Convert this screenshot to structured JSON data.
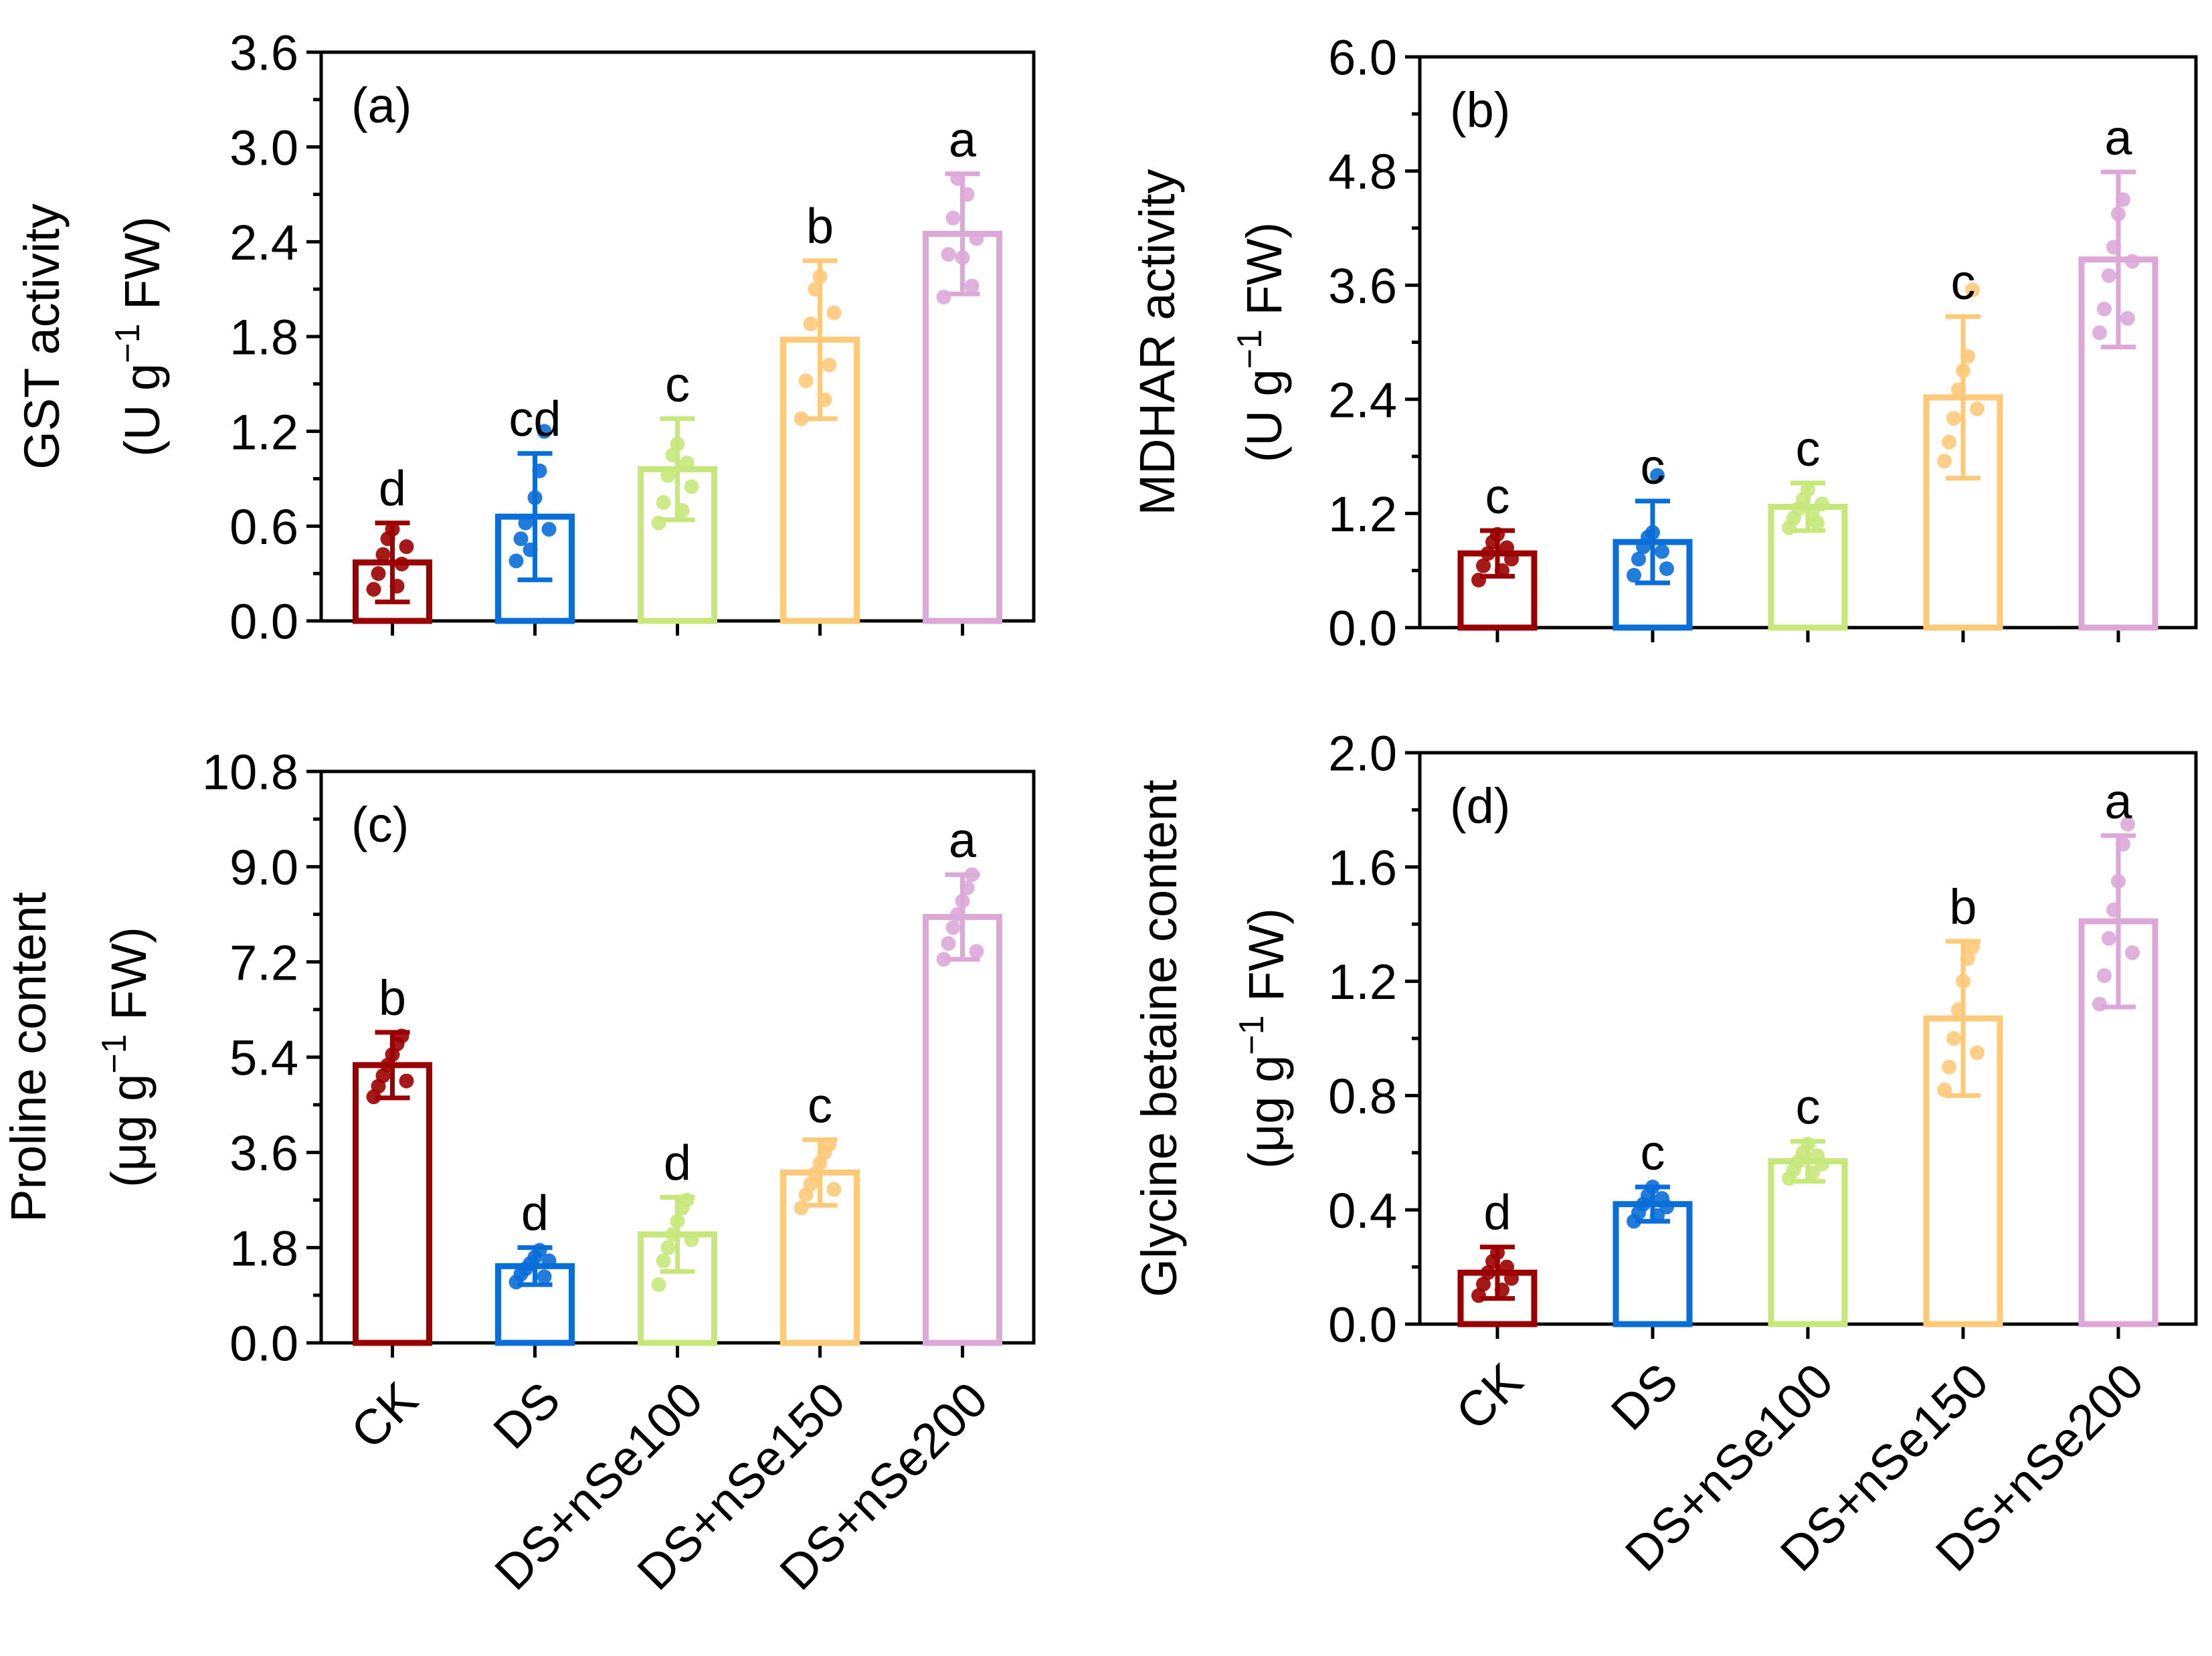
{
  "categories": [
    "CK",
    "DS",
    "DS+nSe100",
    "DS+nSe150",
    "DS+nSe200"
  ],
  "colors": [
    "#9B0000",
    "#0A6ED8",
    "#C6E87A",
    "#FFC97A",
    "#DDA8D8"
  ],
  "chart_data": [
    {
      "type": "bar",
      "panel_label": "(a)",
      "ylabel_line1": "GST activity",
      "ylabel_line2": {
        "prefix": "(U g",
        "sup": "−1",
        "suffix": " FW)"
      },
      "ylim": [
        0.0,
        3.6
      ],
      "yticks": [
        "0.0",
        "0.6",
        "1.2",
        "1.8",
        "2.4",
        "3.0",
        "3.6"
      ],
      "values": [
        0.37,
        0.66,
        0.96,
        1.78,
        2.45
      ],
      "errors": [
        0.25,
        0.4,
        0.32,
        0.5,
        0.38
      ],
      "letters": [
        "d",
        "cd",
        "c",
        "b",
        "a"
      ],
      "points": [
        [
          0.2,
          0.3,
          0.42,
          0.52,
          0.58,
          0.22,
          0.36,
          0.47
        ],
        [
          0.38,
          0.52,
          0.62,
          0.45,
          0.78,
          0.95,
          1.2,
          0.58
        ],
        [
          0.62,
          0.75,
          0.92,
          1.05,
          1.12,
          0.7,
          1.0,
          0.85
        ],
        [
          1.28,
          1.52,
          1.88,
          2.1,
          2.18,
          1.4,
          1.62,
          1.95
        ],
        [
          2.05,
          2.32,
          2.55,
          2.8,
          2.3,
          2.7,
          2.12,
          2.42
        ]
      ],
      "show_xlabels": false
    },
    {
      "type": "bar",
      "panel_label": "(b)",
      "ylabel_line1": "MDHAR activity",
      "ylabel_line2": {
        "prefix": "(U g",
        "sup": "−1",
        "suffix": " FW)"
      },
      "ylim": [
        0.0,
        6.0
      ],
      "yticks": [
        "0.0",
        "1.2",
        "2.4",
        "3.6",
        "4.8",
        "6.0"
      ],
      "values": [
        0.78,
        0.9,
        1.27,
        2.42,
        3.87
      ],
      "errors": [
        0.24,
        0.43,
        0.25,
        0.85,
        0.92
      ],
      "letters": [
        "c",
        "c",
        "c",
        "c",
        "a"
      ],
      "points": [
        [
          0.5,
          0.65,
          0.78,
          0.9,
          0.98,
          0.6,
          0.84,
          0.72
        ],
        [
          0.55,
          0.72,
          0.85,
          0.95,
          1.0,
          1.6,
          0.8,
          0.62
        ],
        [
          1.05,
          1.15,
          1.25,
          1.35,
          1.45,
          1.2,
          1.1,
          1.3
        ],
        [
          1.75,
          1.95,
          2.2,
          2.5,
          2.7,
          2.85,
          3.55,
          2.3
        ],
        [
          3.1,
          3.35,
          3.7,
          4.0,
          4.35,
          4.5,
          3.25,
          3.85
        ]
      ],
      "show_xlabels": false
    },
    {
      "type": "bar",
      "panel_label": "(c)",
      "ylabel_line1": "Proline content",
      "ylabel_line2": {
        "prefix": "(μg g",
        "sup": "−1",
        "suffix": " FW)"
      },
      "ylim": [
        0.0,
        10.8
      ],
      "yticks": [
        "0.0",
        "1.8",
        "3.6",
        "5.4",
        "7.2",
        "9.0",
        "10.8"
      ],
      "values": [
        5.25,
        1.45,
        2.05,
        3.22,
        8.05
      ],
      "errors": [
        0.62,
        0.35,
        0.7,
        0.62,
        0.8
      ],
      "letters": [
        "b",
        "d",
        "d",
        "c",
        "a"
      ],
      "points": [
        [
          4.65,
          4.85,
          5.05,
          5.25,
          5.45,
          5.65,
          5.8,
          4.95
        ],
        [
          1.15,
          1.3,
          1.4,
          1.5,
          1.62,
          1.75,
          1.25,
          1.55
        ],
        [
          1.1,
          1.55,
          1.8,
          2.05,
          2.3,
          2.55,
          2.7,
          1.95
        ],
        [
          2.55,
          2.8,
          3.0,
          3.2,
          3.4,
          3.6,
          3.75,
          2.9
        ],
        [
          7.25,
          7.55,
          7.85,
          8.1,
          8.35,
          8.6,
          8.85,
          7.4
        ]
      ],
      "show_xlabels": true
    },
    {
      "type": "bar",
      "panel_label": "(d)",
      "ylabel_line1": "Glycine betaine content",
      "ylabel_line2": {
        "prefix": "(μg g",
        "sup": "−1",
        "suffix": " FW)"
      },
      "ylim": [
        0.0,
        2.0
      ],
      "yticks": [
        "0.0",
        "0.4",
        "0.8",
        "1.2",
        "1.6",
        "2.0"
      ],
      "values": [
        0.18,
        0.42,
        0.57,
        1.07,
        1.41
      ],
      "errors": [
        0.09,
        0.06,
        0.07,
        0.27,
        0.3
      ],
      "letters": [
        "d",
        "c",
        "c",
        "b",
        "a"
      ],
      "points": [
        [
          0.1,
          0.14,
          0.18,
          0.22,
          0.25,
          0.12,
          0.2,
          0.16
        ],
        [
          0.36,
          0.39,
          0.42,
          0.45,
          0.48,
          0.38,
          0.44,
          0.41
        ],
        [
          0.51,
          0.54,
          0.57,
          0.6,
          0.63,
          0.53,
          0.59,
          0.56
        ],
        [
          0.82,
          0.9,
          1.0,
          1.1,
          1.2,
          1.28,
          1.32,
          0.95
        ],
        [
          1.12,
          1.22,
          1.35,
          1.45,
          1.55,
          1.68,
          1.75,
          1.3
        ]
      ],
      "show_xlabels": true
    }
  ]
}
